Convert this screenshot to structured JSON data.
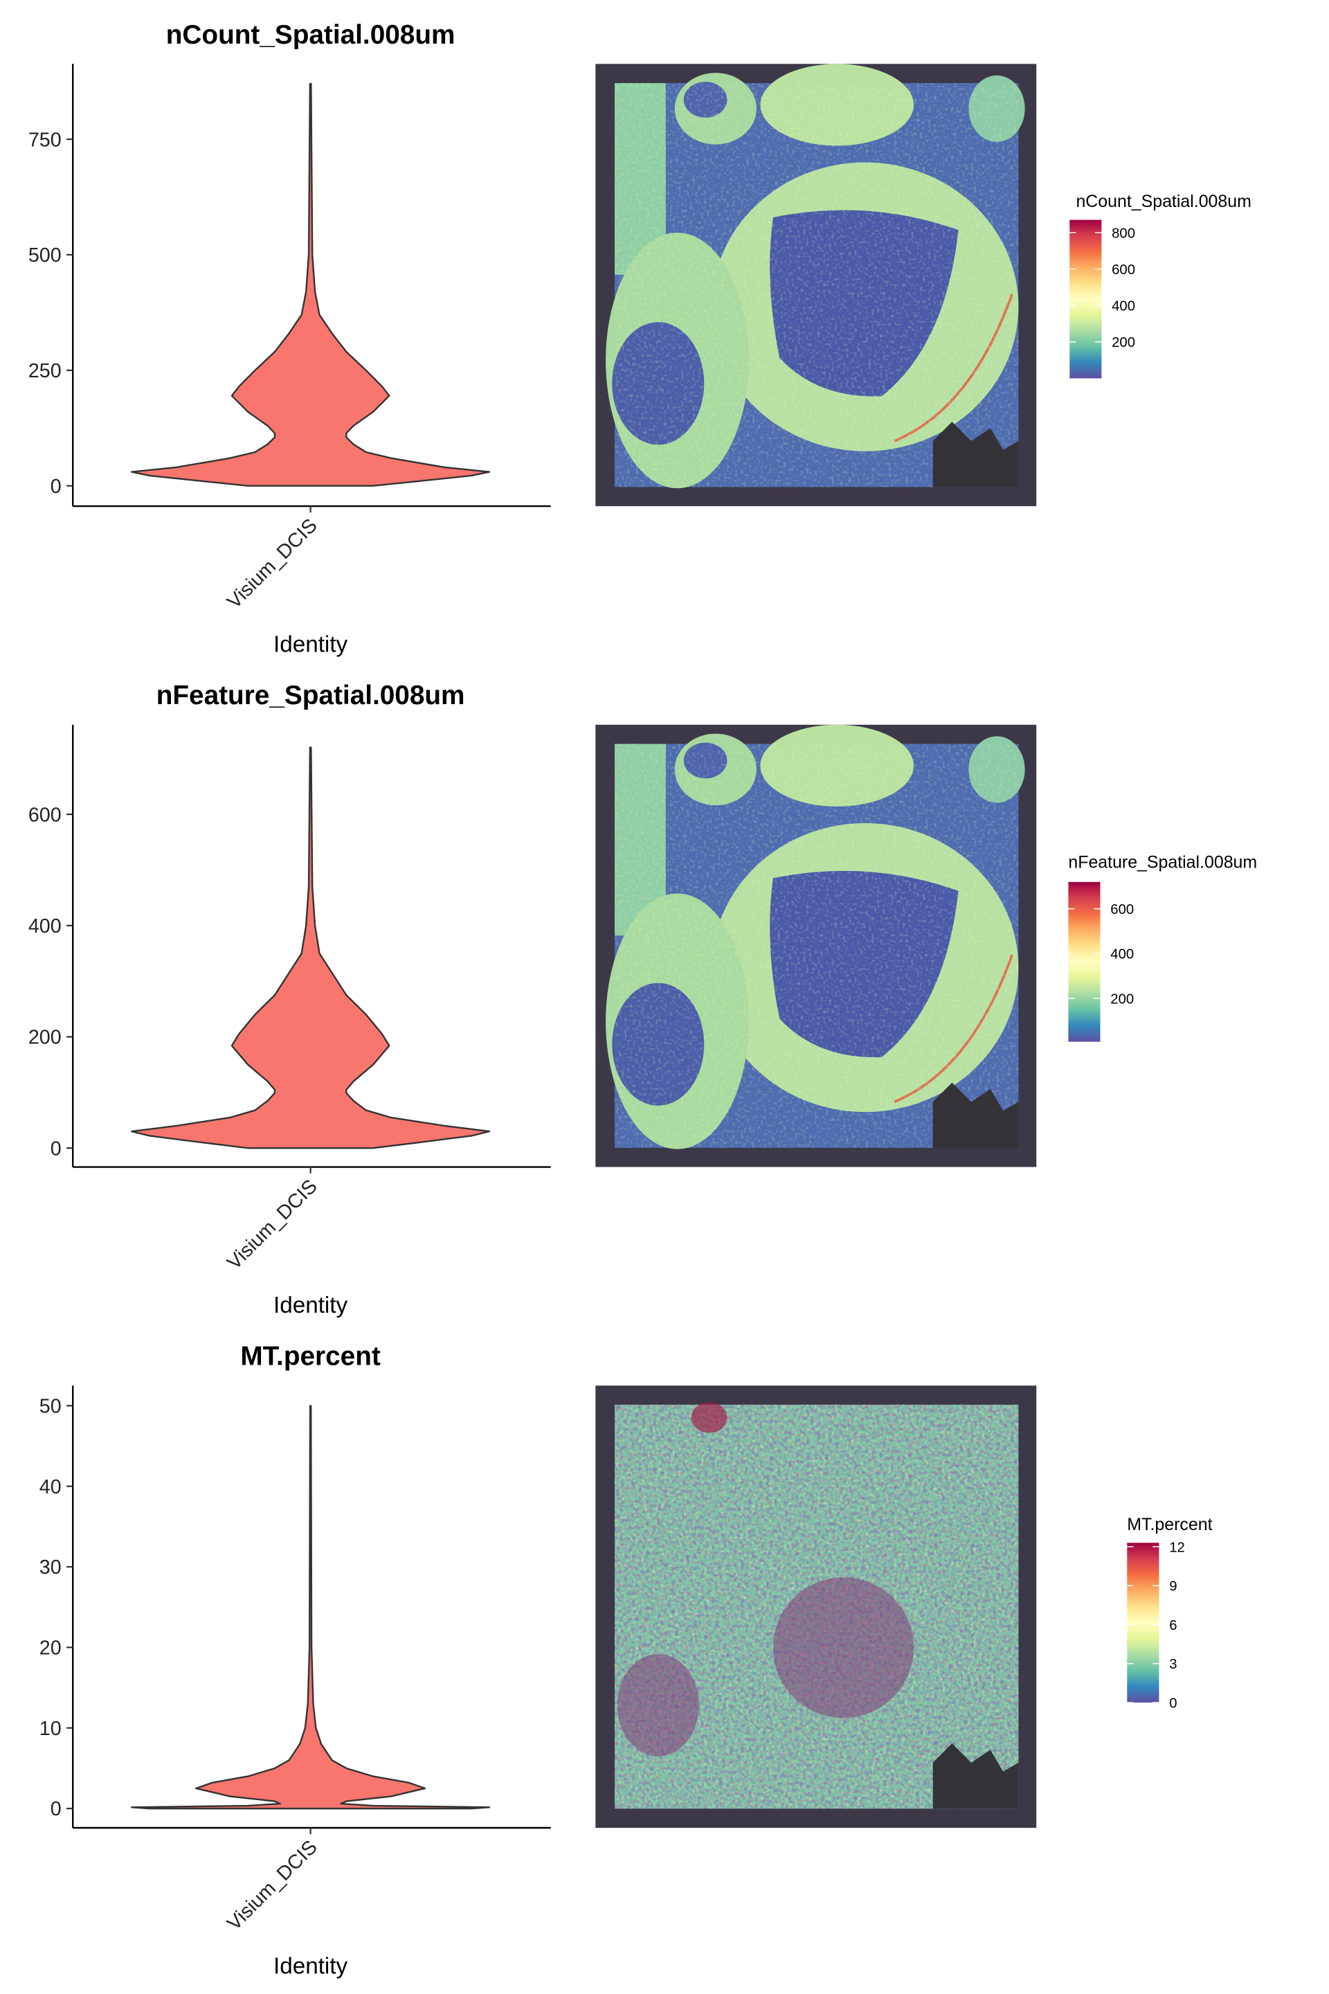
{
  "palette": [
    "#5e4fa2",
    "#3288bd",
    "#66c2a5",
    "#abdda4",
    "#e6f598",
    "#ffffbf",
    "#fee08b",
    "#fdae61",
    "#f46d43",
    "#d53e4f",
    "#9e0142"
  ],
  "violin_fill": "#f8766d",
  "chart_data": [
    {
      "type": "violin",
      "title": "nCount_Spatial.008um",
      "xlabel": "Identity",
      "categories": [
        "Visium_DCIS"
      ],
      "ylim": [
        -44,
        913
      ],
      "yticks": [
        0,
        250,
        500,
        750
      ],
      "density": {
        "values": [
          0,
          10,
          22,
          30,
          40,
          60,
          73,
          90,
          105,
          114,
          130,
          160,
          195,
          215,
          250,
          290,
          330,
          370,
          420,
          500,
          870
        ],
        "rel_width": [
          0.35,
          0.6,
          0.9,
          1.0,
          0.75,
          0.45,
          0.31,
          0.24,
          0.2,
          0.2,
          0.24,
          0.35,
          0.44,
          0.4,
          0.31,
          0.2,
          0.12,
          0.05,
          0.025,
          0.01,
          0.003
        ]
      },
      "spatial_legend": {
        "title": "nCount_Spatial.008um",
        "range": [
          0,
          870
        ],
        "ticks": [
          200,
          400,
          600,
          800
        ]
      }
    },
    {
      "type": "violin",
      "title": "nFeature_Spatial.008um",
      "xlabel": "Identity",
      "categories": [
        "Visium_DCIS"
      ],
      "ylim": [
        -34,
        761
      ],
      "yticks": [
        0,
        200,
        400,
        600
      ],
      "density": {
        "values": [
          0,
          10,
          22,
          30,
          40,
          55,
          68,
          85,
          99,
          105,
          120,
          150,
          184,
          205,
          240,
          275,
          315,
          350,
          400,
          470,
          720
        ],
        "rel_width": [
          0.35,
          0.6,
          0.9,
          1.0,
          0.75,
          0.45,
          0.31,
          0.24,
          0.2,
          0.2,
          0.24,
          0.35,
          0.44,
          0.4,
          0.31,
          0.2,
          0.12,
          0.05,
          0.025,
          0.01,
          0.003
        ]
      },
      "spatial_legend": {
        "title": "nFeature_Spatial.008um",
        "range": [
          6,
          720
        ],
        "ticks": [
          200,
          400,
          600
        ]
      }
    },
    {
      "type": "violin",
      "title": "MT.percent",
      "xlabel": "Identity",
      "categories": [
        "Visium_DCIS"
      ],
      "ylim": [
        -2.4,
        52.5
      ],
      "yticks": [
        0,
        10,
        20,
        30,
        40,
        50
      ],
      "density": {
        "values": [
          0,
          0.15,
          0.35,
          0.6,
          0.9,
          1.5,
          2.5,
          3.2,
          4,
          5,
          6,
          8,
          10,
          13,
          20,
          50
        ],
        "rel_width": [
          0.9,
          1.0,
          0.35,
          0.17,
          0.2,
          0.45,
          0.64,
          0.55,
          0.35,
          0.2,
          0.12,
          0.06,
          0.03,
          0.015,
          0.006,
          0.002
        ]
      },
      "spatial_legend": {
        "title": "MT.percent",
        "range": [
          0,
          12.3
        ],
        "ticks": [
          0,
          3,
          6,
          9,
          12
        ]
      }
    }
  ]
}
